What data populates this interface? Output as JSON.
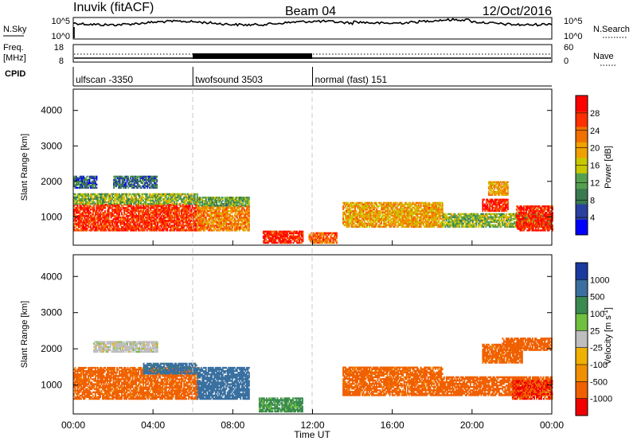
{
  "header": {
    "station": "Inuvik (fitACF)",
    "beam": "Beam 04",
    "date": "12/Oct/2016"
  },
  "noise_panel": {
    "left_label": "N.Sky",
    "right_label": "N.Search",
    "left_ticks": [
      "10^5",
      "10^0"
    ],
    "right_ticks": [
      "10^5",
      "10^0"
    ]
  },
  "freq_panel": {
    "left_label_line1": "Freq.",
    "left_label_line2": "[MHz]",
    "right_label": "Nave",
    "left_ticks": [
      "18",
      "8"
    ],
    "right_ticks": [
      "60",
      "0"
    ]
  },
  "cpid": {
    "label": "CPID",
    "segments": [
      {
        "name": "ulfscan -3350",
        "start": 0,
        "end": 6
      },
      {
        "name": "twofsound 3503",
        "start": 6,
        "end": 12
      },
      {
        "name": "normal (fast) 151",
        "start": 12,
        "end": 24
      }
    ]
  },
  "colors": {
    "power": [
      "#0000ff",
      "#2a3fa0",
      "#3a7a50",
      "#55a050",
      "#c8c800",
      "#f0a000",
      "#f07000",
      "#ff3000",
      "#ff0000"
    ],
    "velocity_pos": [
      "#1a3aa0",
      "#3a70a0",
      "#3a8a50",
      "#70c040"
    ],
    "velocity_ground": "#bebebe",
    "velocity_neg": [
      "#f0b000",
      "#f09000",
      "#f06000",
      "#f00000"
    ]
  },
  "chart_data": [
    {
      "type": "heatmap",
      "name": "power",
      "xlabel": "",
      "ylabel": "Slant Range [km]",
      "xlim": [
        0,
        24
      ],
      "ylim": [
        200,
        4600
      ],
      "yticks": [
        1000,
        2000,
        3000,
        4000
      ],
      "colorbar": {
        "label": "Power [dB]",
        "ticks": [
          "28",
          "24",
          "20",
          "16",
          "12",
          "8",
          "4"
        ],
        "range": [
          0,
          32
        ]
      },
      "regions": [
        {
          "x": [
            0,
            6.2
          ],
          "y": [
            600,
            1350
          ],
          "value": 27
        },
        {
          "x": [
            0,
            6.2
          ],
          "y": [
            1350,
            1650
          ],
          "value": 14
        },
        {
          "x": [
            0,
            1.2
          ],
          "y": [
            1800,
            2150
          ],
          "value": 7
        },
        {
          "x": [
            2.0,
            4.2
          ],
          "y": [
            1800,
            2150
          ],
          "value": 8
        },
        {
          "x": [
            6.2,
            8.8
          ],
          "y": [
            600,
            1300
          ],
          "value": 22
        },
        {
          "x": [
            6.2,
            8.8
          ],
          "y": [
            1300,
            1550
          ],
          "value": 12
        },
        {
          "x": [
            9.5,
            11.5
          ],
          "y": [
            250,
            600
          ],
          "value": 28
        },
        {
          "x": [
            11.8,
            13.2
          ],
          "y": [
            250,
            550
          ],
          "value": 24
        },
        {
          "x": [
            13.5,
            18.5
          ],
          "y": [
            700,
            1400
          ],
          "value": 20
        },
        {
          "x": [
            18.5,
            24
          ],
          "y": [
            700,
            1100
          ],
          "value": 14
        },
        {
          "x": [
            20.5,
            21.8
          ],
          "y": [
            1150,
            1500
          ],
          "value": 28
        },
        {
          "x": [
            20.8,
            21.8
          ],
          "y": [
            1600,
            2000
          ],
          "value": 20
        },
        {
          "x": [
            22.2,
            24
          ],
          "y": [
            600,
            1300
          ],
          "value": 28
        }
      ]
    },
    {
      "type": "heatmap",
      "name": "velocity",
      "xlabel": "Time UT",
      "ylabel": "Slant Range [km]",
      "xlim": [
        0,
        24
      ],
      "ylim": [
        200,
        4600
      ],
      "xticks": [
        "00:00",
        "04:00",
        "08:00",
        "12:00",
        "16:00",
        "20:00",
        "00:00"
      ],
      "yticks": [
        1000,
        2000,
        3000,
        4000
      ],
      "colorbar": {
        "label": "Velocity [m s",
        "label_sup": "-1",
        "label_end": "]",
        "ticks": [
          "1000",
          "500",
          "100",
          "25",
          "-25",
          "-100",
          "-500",
          "-1000"
        ]
      },
      "regions": [
        {
          "x": [
            0,
            6.2
          ],
          "y": [
            600,
            1500
          ],
          "value": -150
        },
        {
          "x": [
            1.0,
            4.2
          ],
          "y": [
            1900,
            2200
          ],
          "value": 0
        },
        {
          "x": [
            3.5,
            6.2
          ],
          "y": [
            1300,
            1600
          ],
          "value": 150
        },
        {
          "x": [
            6.2,
            8.8
          ],
          "y": [
            600,
            1500
          ],
          "value": 200
        },
        {
          "x": [
            9.3,
            11.5
          ],
          "y": [
            250,
            650
          ],
          "value": 60
        },
        {
          "x": [
            13.5,
            18.5
          ],
          "y": [
            700,
            1500
          ],
          "value": -150
        },
        {
          "x": [
            18.5,
            24
          ],
          "y": [
            700,
            1200
          ],
          "value": -200
        },
        {
          "x": [
            20.5,
            22.5
          ],
          "y": [
            1600,
            2100
          ],
          "value": -150
        },
        {
          "x": [
            21.5,
            24
          ],
          "y": [
            1950,
            2300
          ],
          "value": -300
        },
        {
          "x": [
            22.0,
            24
          ],
          "y": [
            600,
            1100
          ],
          "value": -500
        }
      ]
    }
  ]
}
